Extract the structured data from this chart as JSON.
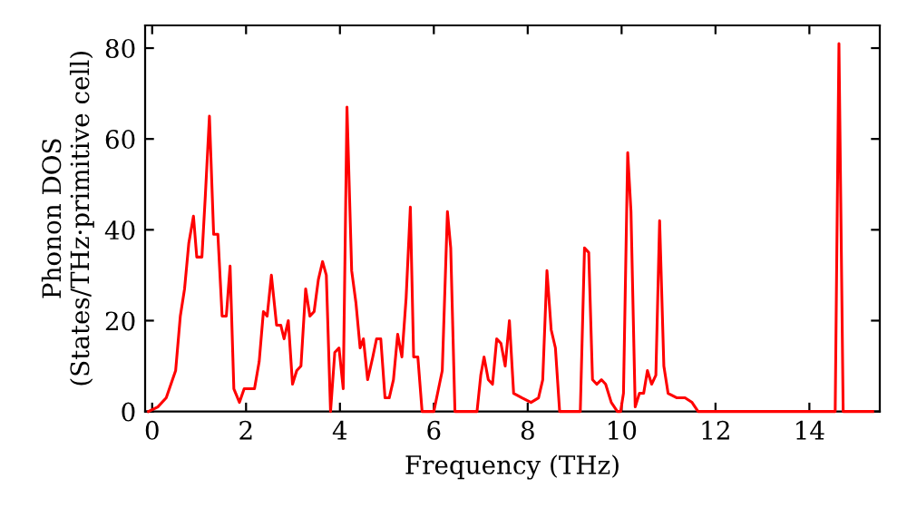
{
  "chart_data": {
    "type": "line",
    "xlabel": "Frequency (THz)",
    "ylabel": "Phonon DOS\n(States/THz·primitive cell)",
    "xlim": [
      -0.15,
      15.5
    ],
    "ylim": [
      0,
      85
    ],
    "xticks": [
      0,
      2,
      4,
      6,
      8,
      10,
      12,
      14
    ],
    "yticks": [
      0,
      20,
      40,
      60,
      80
    ],
    "grid": false,
    "marker": "none",
    "line_style": "solid",
    "series": [
      {
        "color": "#ff0000",
        "x": [
          -0.08,
          0.12,
          0.3,
          0.5,
          0.6,
          0.69,
          0.78,
          0.88,
          0.95,
          1.06,
          1.13,
          1.22,
          1.31,
          1.4,
          1.49,
          1.58,
          1.66,
          1.74,
          1.86,
          1.96,
          2.18,
          2.28,
          2.37,
          2.45,
          2.54,
          2.65,
          2.74,
          2.81,
          2.9,
          2.99,
          3.08,
          3.17,
          3.27,
          3.36,
          3.45,
          3.54,
          3.63,
          3.71,
          3.8,
          3.89,
          3.98,
          4.07,
          4.15,
          4.25,
          4.34,
          4.43,
          4.5,
          4.59,
          4.7,
          4.78,
          4.87,
          4.96,
          5.05,
          5.14,
          5.23,
          5.32,
          5.41,
          5.5,
          5.57,
          5.66,
          5.75,
          6.0,
          6.1,
          6.18,
          6.29,
          6.36,
          6.45,
          6.92,
          7.0,
          7.07,
          7.16,
          7.25,
          7.34,
          7.43,
          7.52,
          7.61,
          7.7,
          7.88,
          8.07,
          8.23,
          8.32,
          8.41,
          8.5,
          8.59,
          8.68,
          9.12,
          9.21,
          9.3,
          9.38,
          9.47,
          9.57,
          9.66,
          9.78,
          9.91,
          9.98,
          10.04,
          10.13,
          10.2,
          10.29,
          10.38,
          10.47,
          10.55,
          10.64,
          10.73,
          10.81,
          10.9,
          10.99,
          11.18,
          11.35,
          11.5,
          11.63,
          14.55,
          14.63,
          14.72,
          15.35
        ],
        "values": [
          0,
          1,
          3,
          9,
          21,
          27,
          37,
          43,
          34,
          34,
          47,
          65,
          39,
          39,
          21,
          21,
          32,
          5,
          2,
          5,
          5,
          11,
          22,
          21,
          30,
          19,
          19,
          16,
          20,
          6,
          9,
          10,
          27,
          21,
          22,
          29,
          33,
          30,
          0,
          13,
          14,
          5,
          67,
          31,
          24,
          14,
          16,
          7,
          12,
          16,
          16,
          3,
          3,
          7,
          17,
          12,
          25,
          45,
          12,
          12,
          0,
          0,
          5,
          9,
          44,
          36,
          0,
          0,
          8,
          12,
          7,
          6,
          16,
          15,
          10,
          20,
          4,
          3,
          2,
          3,
          7,
          31,
          18,
          14,
          0,
          0,
          36,
          35,
          7,
          6,
          7,
          6,
          2,
          0,
          0,
          4,
          57,
          44,
          1,
          4,
          4,
          9,
          6,
          8,
          42,
          10,
          4,
          3,
          3,
          2,
          0,
          0,
          81,
          0,
          0
        ]
      }
    ]
  }
}
